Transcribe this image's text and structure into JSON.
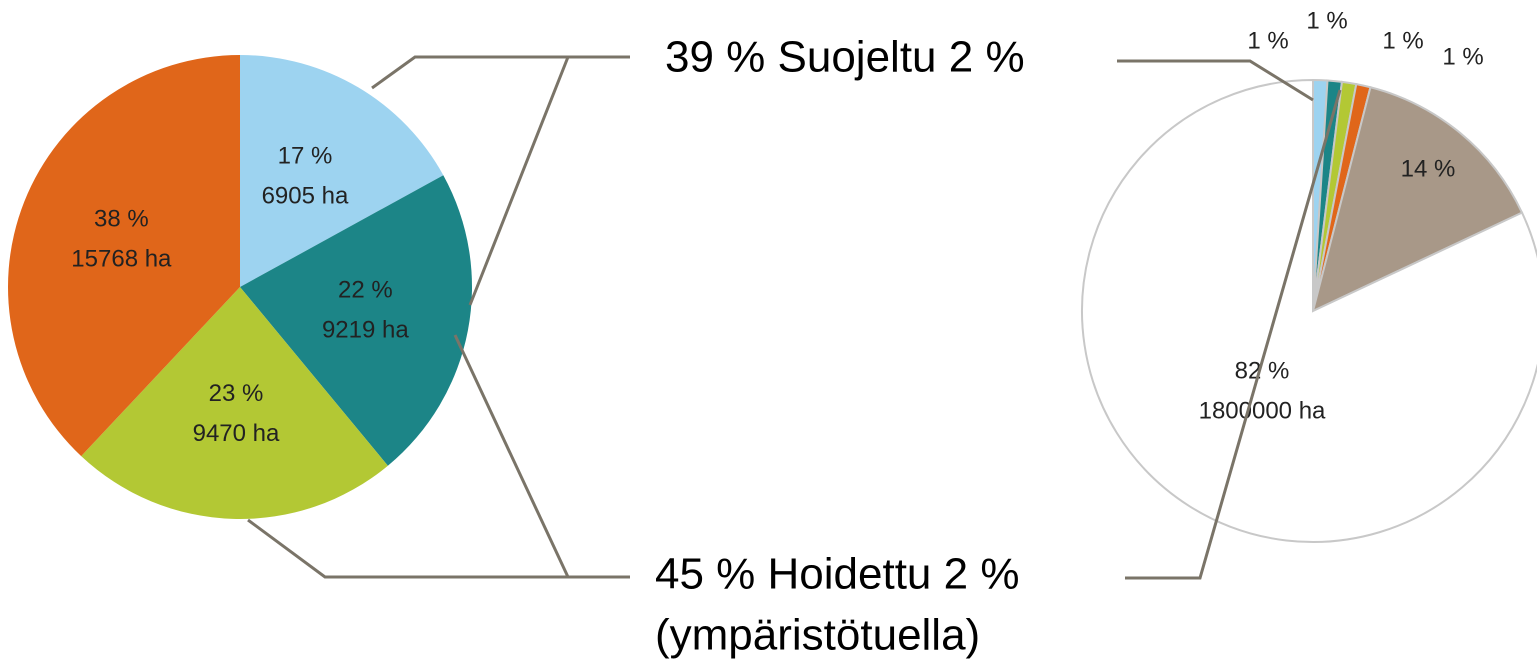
{
  "chart_data": [
    {
      "type": "pie",
      "categories": [
        null,
        null,
        null,
        null
      ],
      "values": [
        17,
        22,
        23,
        38
      ],
      "value_labels": [
        "17 %",
        "22 %",
        "23 %",
        "38 %"
      ],
      "area_labels": [
        "6905 ha",
        "9219 ha",
        "9470 ha",
        "15768 ha"
      ],
      "colors": [
        "#9dd3f0",
        "#1c8587",
        "#b3c834",
        "#e0661a"
      ]
    },
    {
      "type": "pie",
      "categories": [
        null,
        null,
        null,
        null,
        null,
        null
      ],
      "values": [
        1,
        1,
        1,
        1,
        14,
        82
      ],
      "value_labels": [
        "1 %",
        "1 %",
        "1 %",
        "1 %",
        "14 %",
        "82 %"
      ],
      "area_labels": [
        null,
        null,
        null,
        null,
        null,
        "1800000 ha"
      ],
      "colors": [
        "#9dd3f0",
        "#1c8587",
        "#b3c834",
        "#e0661a",
        "#a89888",
        "#ffffff"
      ]
    }
  ],
  "annotations": [
    "39 % Suojeltu 2 %",
    "45 % Hoidettu 2 %",
    "(ympäristötuella)"
  ]
}
